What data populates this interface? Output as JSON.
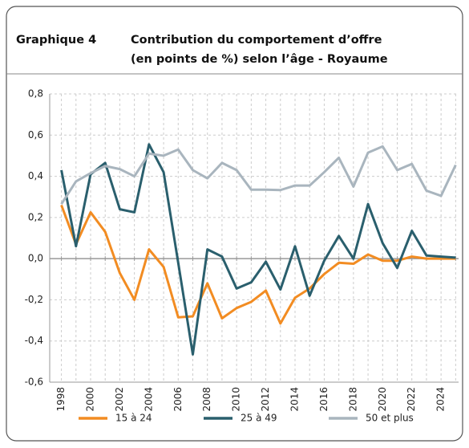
{
  "chart_data": {
    "type": "line",
    "label": "Graphique 4",
    "title": [
      "Contribution du comportement d’offre",
      "(en points de %) selon l’âge - Royaume"
    ],
    "x": [
      1998,
      1999,
      2000,
      2001,
      2002,
      2003,
      2004,
      2005,
      2006,
      2007,
      2008,
      2009,
      2010,
      2011,
      2012,
      2013,
      2014,
      2015,
      2016,
      2017,
      2018,
      2019,
      2020,
      2021,
      2022,
      2023,
      2024,
      2025
    ],
    "series": [
      {
        "name": "15 à 24",
        "color": "#f28c22",
        "values": [
          0.26,
          0.07,
          0.225,
          0.13,
          -0.07,
          -0.2,
          0.045,
          -0.04,
          -0.285,
          -0.28,
          -0.12,
          -0.29,
          -0.24,
          -0.21,
          -0.155,
          -0.315,
          -0.19,
          -0.145,
          -0.075,
          -0.02,
          -0.025,
          0.02,
          -0.01,
          -0.01,
          0.01,
          0.0,
          0.0,
          0.0
        ]
      },
      {
        "name": "25 à 49",
        "color": "#2a5f6d",
        "values": [
          0.43,
          0.06,
          0.41,
          0.465,
          0.24,
          0.225,
          0.555,
          0.42,
          -0.02,
          -0.465,
          0.045,
          0.01,
          -0.145,
          -0.115,
          -0.015,
          -0.15,
          0.06,
          -0.18,
          -0.01,
          0.11,
          0.0,
          0.265,
          0.075,
          -0.045,
          0.135,
          0.015,
          0.01,
          0.005
        ]
      },
      {
        "name": "50 et plus",
        "color": "#a9b5be",
        "values": [
          0.265,
          0.375,
          0.415,
          0.45,
          0.435,
          0.4,
          0.51,
          0.5,
          0.53,
          0.43,
          0.39,
          0.465,
          0.43,
          0.335,
          0.335,
          0.333,
          0.355,
          0.355,
          0.42,
          0.49,
          0.35,
          0.515,
          0.545,
          0.43,
          0.46,
          0.33,
          0.305,
          0.455
        ]
      }
    ],
    "xlim": [
      1997.2,
      2025.2
    ],
    "xticks": [
      1998,
      2000,
      2002,
      2004,
      2006,
      2008,
      2010,
      2012,
      2014,
      2016,
      2018,
      2020,
      2022,
      2024
    ],
    "ylim": [
      -0.6,
      0.8
    ],
    "yticks": [
      {
        "value": -0.6,
        "label": "-0,6"
      },
      {
        "value": -0.4,
        "label": "-0,4"
      },
      {
        "value": -0.2,
        "label": "-0,2"
      },
      {
        "value": 0,
        "label": "0,0"
      },
      {
        "value": 0.2,
        "label": "0,2"
      },
      {
        "value": 0.4,
        "label": "0,4"
      },
      {
        "value": 0.6,
        "label": "0,6"
      },
      {
        "value": 0.8,
        "label": "0,8"
      }
    ],
    "grid": true,
    "legend": "bottom"
  }
}
